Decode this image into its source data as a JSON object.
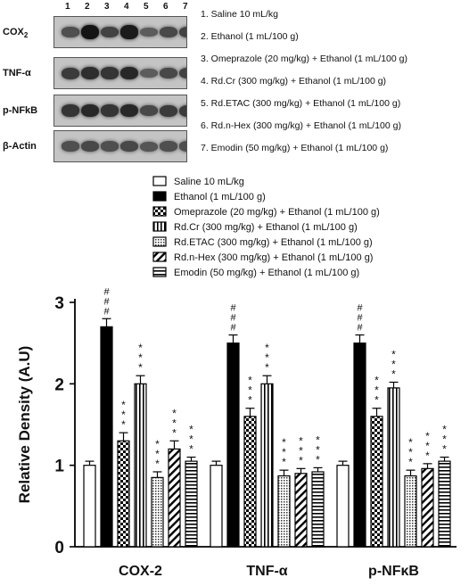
{
  "blot": {
    "lane_numbers": [
      "1",
      "2",
      "3",
      "4",
      "5",
      "6",
      "7"
    ],
    "proteins": [
      {
        "label": "COX2",
        "label_main": "COX",
        "label_sub": "2",
        "intensity": [
          0.55,
          1.0,
          0.65,
          0.95,
          0.45,
          0.6,
          0.65
        ]
      },
      {
        "label": "TNF-α",
        "label_main": "TNF-α",
        "label_sub": "",
        "intensity": [
          0.7,
          0.8,
          0.75,
          0.85,
          0.45,
          0.6,
          0.65
        ]
      },
      {
        "label": "p-NFkB",
        "label_main": "p-NFkB",
        "label_sub": "",
        "intensity": [
          0.75,
          0.85,
          0.75,
          0.85,
          0.6,
          0.7,
          0.7
        ]
      },
      {
        "label": "β-Actin",
        "label_main": "β-Actin",
        "label_sub": "",
        "intensity": [
          0.55,
          0.6,
          0.55,
          0.6,
          0.5,
          0.55,
          0.55
        ]
      }
    ]
  },
  "treatment_key": [
    "1.  Saline 10 mL/kg",
    "2.  Ethanol (1 mL/100 g)",
    "3.  Omeprazole (20 mg/kg) + Ethanol (1 mL/100 g)",
    "4.  Rd.Cr (300 mg/kg) + Ethanol (1 mL/100 g)",
    "5.  Rd.ETAC (300 mg/kg) + Ethanol (1 mL/100 g)",
    "6.  Rd.n-Hex (300 mg/kg) + Ethanol (1 mL/100 g)",
    "7.  Emodin (50 mg/kg) + Ethanol (1 mL/100 g)"
  ],
  "chart_data": {
    "type": "bar",
    "categories": [
      "COX-2",
      "TNF-α",
      "p-NFκB"
    ],
    "ylabel": "Relative Density (A.U)",
    "ylim": [
      0,
      3
    ],
    "yticks": [
      "0",
      "1",
      "2",
      "3"
    ],
    "legend_position": "top",
    "series": [
      {
        "name": "Saline 10 mL/kg",
        "pattern": "white",
        "values": [
          1.0,
          1.0,
          1.0
        ],
        "errors": [
          0.05,
          0.05,
          0.05
        ],
        "sig": [
          "",
          "",
          ""
        ]
      },
      {
        "name": "Ethanol (1 mL/100 g)",
        "pattern": "black",
        "values": [
          2.7,
          2.5,
          2.5
        ],
        "errors": [
          0.1,
          0.1,
          0.1
        ],
        "sig": [
          "###",
          "###",
          "###"
        ]
      },
      {
        "name": "Omeprazole (20 mg/kg) + Ethanol (1 mL/100 g)",
        "pattern": "checker",
        "values": [
          1.3,
          1.6,
          1.6
        ],
        "errors": [
          0.1,
          0.1,
          0.1
        ],
        "sig": [
          "***",
          "***",
          "***"
        ]
      },
      {
        "name": "Rd.Cr (300 mg/kg) + Ethanol (1 mL/100 g)",
        "pattern": "vlines",
        "values": [
          2.0,
          2.0,
          1.95
        ],
        "errors": [
          0.1,
          0.1,
          0.07
        ],
        "sig": [
          "***",
          "***",
          "***"
        ]
      },
      {
        "name": "Rd.ETAC (300 mg/kg) + Ethanol (1 mL/100 g)",
        "pattern": "dots",
        "values": [
          0.85,
          0.87,
          0.87
        ],
        "errors": [
          0.07,
          0.07,
          0.07
        ],
        "sig": [
          "***",
          "***",
          "***"
        ]
      },
      {
        "name": "Rd.n-Hex (300 mg/kg) + Ethanol (1 mL/100 g)",
        "pattern": "diagonal",
        "values": [
          1.2,
          0.9,
          0.96
        ],
        "errors": [
          0.1,
          0.06,
          0.06
        ],
        "sig": [
          "***",
          "***",
          "***"
        ]
      },
      {
        "name": "Emodin (50 mg/kg) + Ethanol (1 mL/100 g)",
        "pattern": "hlines",
        "values": [
          1.05,
          0.92,
          1.05
        ],
        "errors": [
          0.05,
          0.05,
          0.05
        ],
        "sig": [
          "***",
          "***",
          "***"
        ]
      }
    ]
  }
}
